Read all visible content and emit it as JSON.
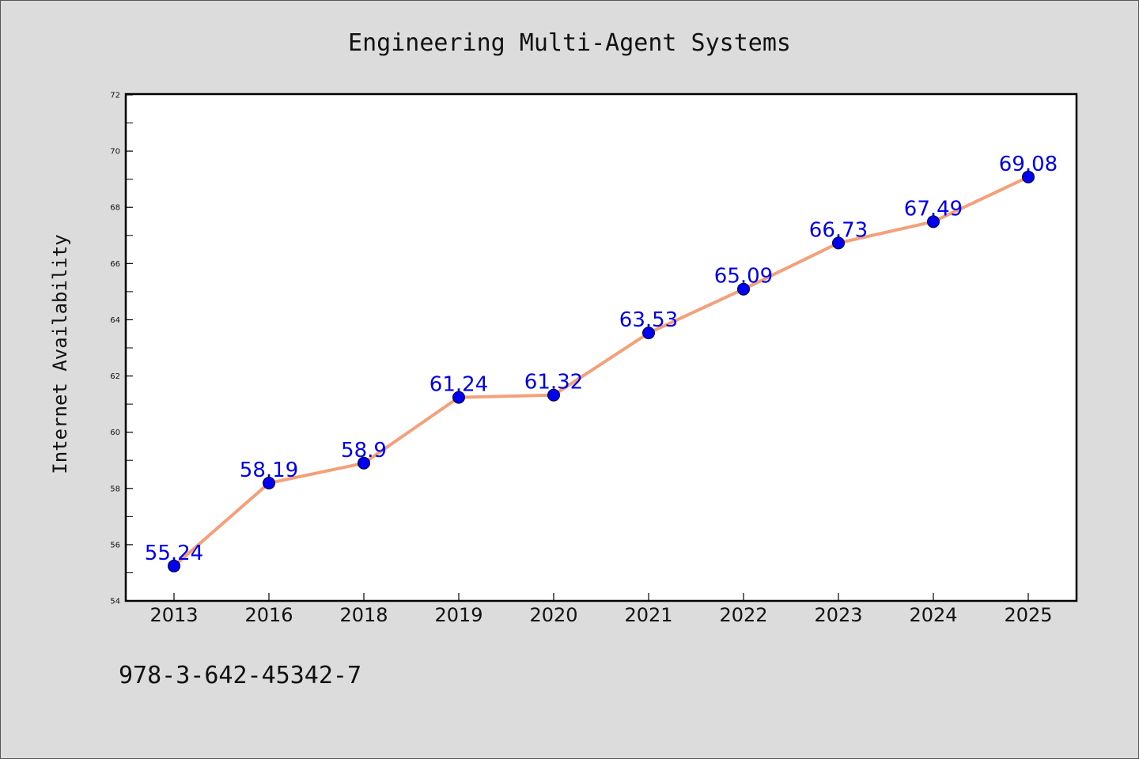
{
  "chart_data": {
    "type": "line",
    "title": "Engineering Multi-Agent Systems",
    "xlabel": "",
    "ylabel": "Internet Availability",
    "categories": [
      "2013",
      "2016",
      "2018",
      "2019",
      "2020",
      "2021",
      "2022",
      "2023",
      "2024",
      "2025"
    ],
    "series": [
      {
        "values": [
          55.24,
          58.19,
          58.9,
          61.24,
          61.32,
          63.53,
          65.09,
          66.73,
          67.49,
          69.08
        ],
        "data_labels": [
          "55.24",
          "58.19",
          "58.9",
          "61.24",
          "61.32",
          "63.53",
          "65.09",
          "66.73",
          "67.49",
          "69.08"
        ],
        "line_color": "#f4a07a",
        "marker_color": "#0000ee"
      }
    ],
    "ylim": [
      54,
      72
    ],
    "yticks": [
      54,
      56,
      58,
      60,
      62,
      64,
      66,
      68,
      70,
      72
    ],
    "grid": false,
    "legend": "none",
    "background": "#dcdcdc",
    "plot_background": "#ffffff"
  },
  "annotation": "978-3-642-45342-7"
}
